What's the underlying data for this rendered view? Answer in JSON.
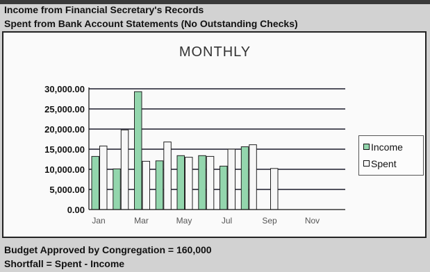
{
  "header": {
    "line1": "Income from Financial Secretary's Records",
    "line2": "Spent from Bank Account Statements (No Outstanding Checks)"
  },
  "footer": {
    "line1": "Budget Approved by Congregation = 160,000",
    "line2": "Shortfall = Spent - Income"
  },
  "colors": {
    "income": "#93d6ad",
    "spent": "#f7f7f7",
    "grid": "#1a1a2a"
  },
  "chart_data": {
    "type": "bar",
    "title": "MONTHLY",
    "ylim": [
      0,
      30000
    ],
    "y_ticks": [
      "30,000.00",
      "25,000.00",
      "20,000.00",
      "15,000.00",
      "10,000.00",
      "5,000.00",
      "0.00"
    ],
    "categories": [
      "Jan",
      "",
      "Mar",
      "",
      "May",
      "",
      "Jul",
      "",
      "Sep",
      "",
      "Nov",
      ""
    ],
    "series": [
      {
        "name": "Income",
        "values": [
          13200,
          10100,
          29300,
          12100,
          13400,
          13400,
          10800,
          15600,
          0,
          0,
          0,
          0
        ]
      },
      {
        "name": "Spent",
        "values": [
          15800,
          19800,
          12000,
          16800,
          13000,
          13200,
          15000,
          16100,
          10200,
          0,
          0,
          0
        ]
      }
    ],
    "grid": true,
    "legend_position": "right"
  }
}
